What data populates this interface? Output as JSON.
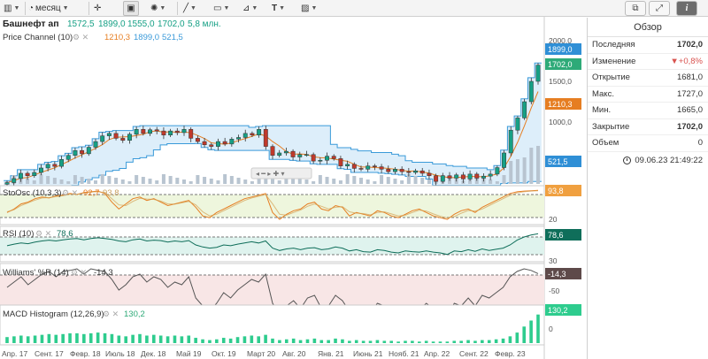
{
  "toolbar": {
    "period_label": "месяц"
  },
  "title": {
    "ticker": "Башнефт ап",
    "ohlc": [
      "1572,5",
      "1899,0",
      "1555,0",
      "1702,0"
    ],
    "volume": "5,8 млн.",
    "channel_label": "Price Channel (10)",
    "channel_values": [
      "1210,3",
      "1899,0",
      "521,5"
    ]
  },
  "price_axis": {
    "ticks": [
      "2000,0",
      "1500,0",
      "1000,0"
    ],
    "badge_upper": "1899,0",
    "badge_last": "1702,0",
    "badge_mid": "1210,3",
    "badge_lower": "521,5"
  },
  "indicators": {
    "stoch": {
      "label": "StoOsc (10,3,3)",
      "v1": "92,7",
      "v2": "93,8",
      "badge": "93,8",
      "tick": "20"
    },
    "rsi": {
      "label": "RSI (10)",
      "value": "78,6",
      "badge": "78,6",
      "tick": "30"
    },
    "williams": {
      "label": "Williams' %R (14)",
      "value": "-14,3",
      "badge": "-14,3",
      "tick": "-50"
    },
    "macd": {
      "label": "MACD Histogram (12,26,9)",
      "value": "130,2",
      "badge": "130,2",
      "tick": "0"
    }
  },
  "x_axis": {
    "labels": [
      "Апр. 17",
      "Сент. 17",
      "Февр. 18",
      "Июль 18",
      "Дек. 18",
      "Май 19",
      "Окт. 19",
      "Март 20",
      "Авг. 20",
      "Янв. 21",
      "Июнь 21",
      "Нояб. 21",
      "Апр. 22",
      "Сент. 22",
      "Февр. 23"
    ]
  },
  "panel": {
    "title": "Обзор",
    "rows": [
      {
        "label": "Последняя",
        "value": "1702,0"
      },
      {
        "label": "Изменение",
        "value": "▼+0,8%"
      },
      {
        "label": "Открытие",
        "value": "1681,0"
      },
      {
        "label": "Макс.",
        "value": "1727,0"
      },
      {
        "label": "Мин.",
        "value": "1665,0"
      },
      {
        "label": "Закрытие",
        "value": "1702,0"
      },
      {
        "label": "Объем",
        "value": "0"
      }
    ],
    "timestamp": "09.06.23 21:49:22"
  },
  "colors": {
    "up": "#16a085",
    "down": "#c0392b",
    "channel_fill": "#ddeefa",
    "channel_line": "#3a9ad9",
    "mid_line": "#e67e22",
    "badge_blue": "#2f8fd6",
    "badge_green": "#2eaa78",
    "badge_orange": "#e67e22",
    "rsi_dark": "#0f6e5a",
    "williams_dark": "#5e4a4a",
    "macd_green": "#2ecc8e"
  },
  "series": {
    "closes": [
      255,
      305,
      370,
      340,
      380,
      435,
      480,
      455,
      540,
      590,
      650,
      610,
      690,
      760,
      830,
      860,
      800,
      775,
      850,
      910,
      860,
      905,
      890,
      840,
      890,
      870,
      910,
      800,
      760,
      720,
      700,
      760,
      730,
      790,
      810,
      860,
      840,
      910,
      700,
      590,
      620,
      640,
      570,
      600,
      600,
      520,
      530,
      580,
      550,
      460,
      480,
      430,
      420,
      460,
      450,
      420,
      390,
      420,
      390,
      380,
      400,
      370,
      340,
      270,
      340,
      310,
      350,
      300,
      360,
      310,
      335,
      360,
      440,
      620,
      900,
      1050,
      1250,
      1500,
      1700
    ],
    "stoch_k": [
      30,
      40,
      55,
      60,
      70,
      75,
      72,
      78,
      80,
      85,
      82,
      88,
      90,
      92,
      85,
      60,
      40,
      55,
      70,
      75,
      65,
      70,
      60,
      50,
      55,
      60,
      65,
      45,
      20,
      15,
      30,
      40,
      50,
      60,
      70,
      75,
      80,
      85,
      30,
      10,
      25,
      35,
      40,
      55,
      60,
      40,
      35,
      50,
      45,
      20,
      30,
      25,
      20,
      35,
      30,
      20,
      15,
      25,
      35,
      40,
      30,
      20,
      15,
      10,
      25,
      35,
      40,
      30,
      45,
      55,
      65,
      75,
      85,
      90,
      92,
      93,
      94
    ],
    "stoch_d": [
      32,
      38,
      50,
      58,
      66,
      72,
      73,
      76,
      79,
      83,
      83,
      86,
      89,
      90,
      88,
      70,
      52,
      50,
      62,
      71,
      69,
      68,
      63,
      55,
      54,
      58,
      62,
      52,
      32,
      20,
      25,
      35,
      45,
      55,
      65,
      72,
      77,
      82,
      55,
      25,
      22,
      30,
      37,
      48,
      55,
      48,
      40,
      45,
      47,
      32,
      28,
      27,
      23,
      30,
      32,
      26,
      20,
      22,
      30,
      37,
      34,
      26,
      19,
      14,
      18,
      28,
      36,
      34,
      40,
      50,
      60,
      70,
      80,
      87,
      90,
      92,
      93
    ],
    "rsi": [
      48,
      52,
      55,
      53,
      57,
      60,
      62,
      60,
      63,
      65,
      66,
      63,
      66,
      68,
      66,
      64,
      60,
      58,
      63,
      65,
      60,
      62,
      61,
      57,
      60,
      58,
      61,
      50,
      45,
      42,
      44,
      50,
      48,
      52,
      55,
      58,
      55,
      60,
      42,
      36,
      40,
      42,
      38,
      42,
      43,
      38,
      40,
      45,
      42,
      35,
      38,
      33,
      32,
      38,
      36,
      32,
      30,
      35,
      33,
      32,
      35,
      32,
      30,
      26,
      35,
      33,
      38,
      34,
      40,
      36,
      39,
      42,
      50,
      62,
      70,
      75,
      78
    ],
    "williams": [
      -40,
      -30,
      -20,
      -35,
      -25,
      -15,
      -10,
      -20,
      -10,
      -8,
      -5,
      -15,
      -5,
      -8,
      -10,
      -25,
      -45,
      -35,
      -20,
      -15,
      -30,
      -20,
      -25,
      -40,
      -30,
      -35,
      -20,
      -60,
      -75,
      -85,
      -70,
      -50,
      -60,
      -45,
      -35,
      -25,
      -30,
      -15,
      -70,
      -90,
      -75,
      -65,
      -80,
      -60,
      -55,
      -80,
      -75,
      -55,
      -65,
      -85,
      -75,
      -85,
      -88,
      -70,
      -75,
      -85,
      -90,
      -75,
      -80,
      -82,
      -70,
      -80,
      -88,
      -95,
      -70,
      -75,
      -60,
      -75,
      -55,
      -60,
      -50,
      -40,
      -20,
      -10,
      -5,
      -8,
      -14
    ],
    "macd": [
      8,
      9,
      10,
      9,
      10,
      11,
      12,
      11,
      12,
      13,
      13,
      12,
      13,
      14,
      13,
      12,
      10,
      9,
      11,
      12,
      10,
      11,
      10,
      9,
      10,
      9,
      10,
      7,
      5,
      4,
      5,
      7,
      6,
      8,
      9,
      10,
      9,
      11,
      6,
      4,
      5,
      6,
      4,
      5,
      6,
      4,
      4,
      6,
      5,
      3,
      4,
      3,
      3,
      4,
      3,
      3,
      2,
      3,
      3,
      2,
      3,
      2,
      2,
      2,
      3,
      3,
      4,
      3,
      4,
      4,
      5,
      6,
      9,
      14,
      22,
      30,
      38
    ]
  }
}
